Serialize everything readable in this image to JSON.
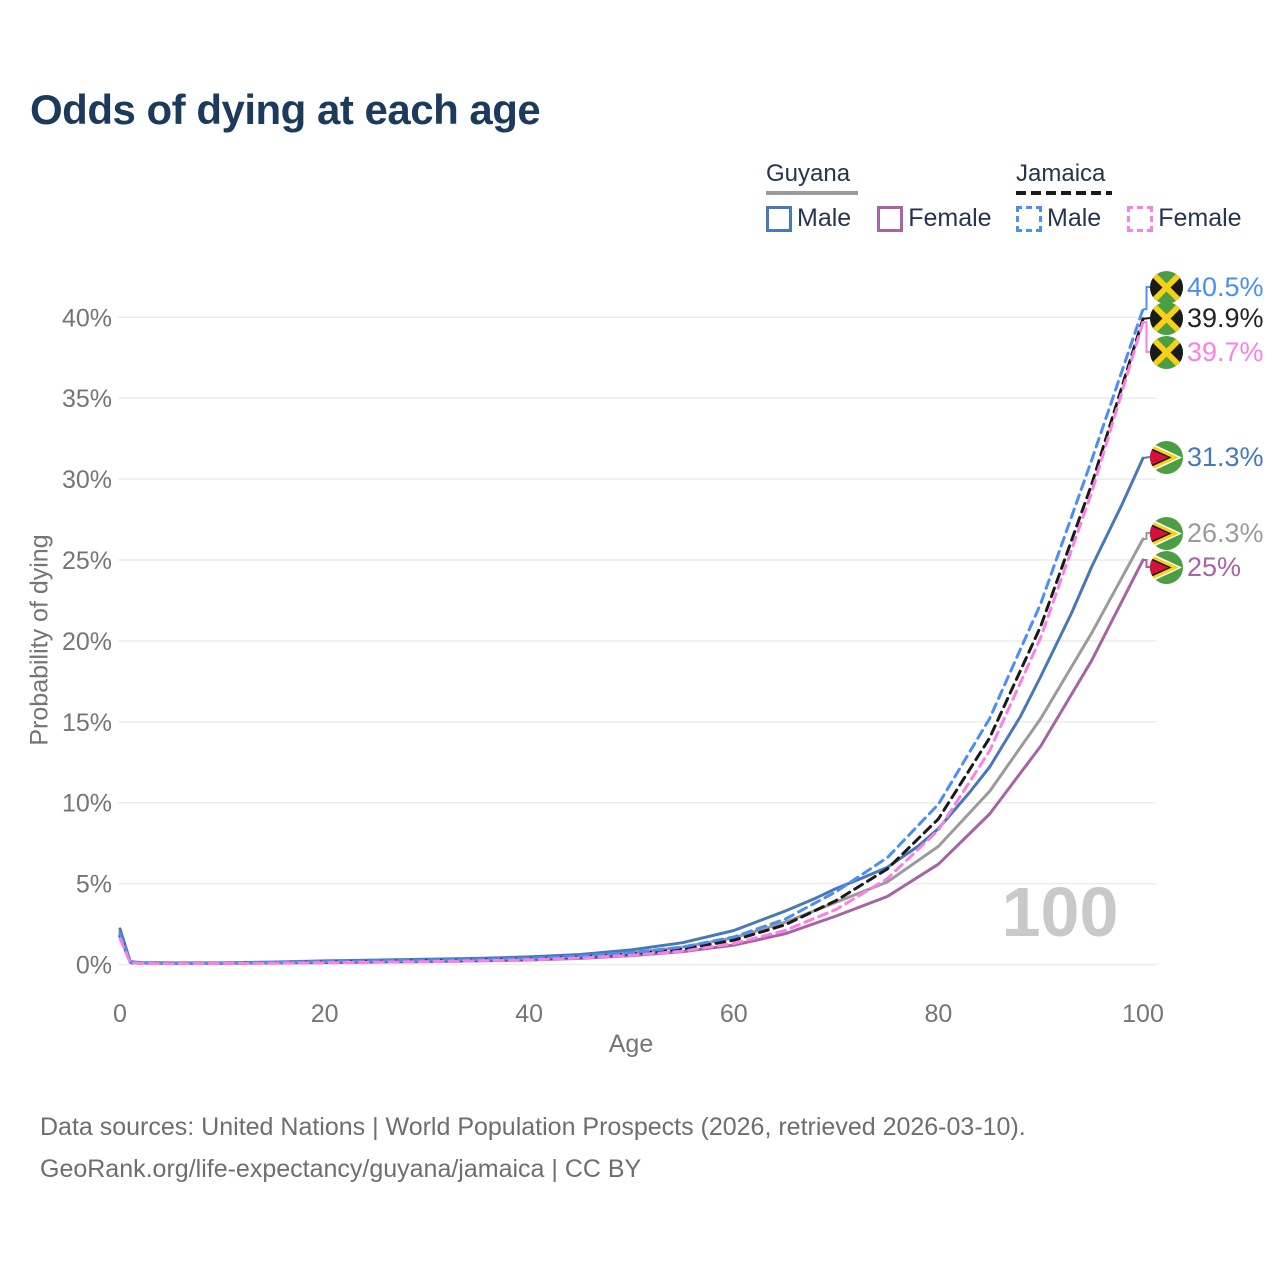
{
  "title": "Odds of dying at each age",
  "legend": {
    "groups": [
      {
        "country": "Guyana",
        "line_style": "solid",
        "underline_color": "#9b9b9b",
        "items": [
          {
            "label": "Male",
            "color": "#4878b8"
          },
          {
            "label": "Female",
            "color": "#a763a4"
          }
        ]
      },
      {
        "country": "Jamaica",
        "line_style": "dashed",
        "underline_color": "#1a1a1a",
        "items": [
          {
            "label": "Male",
            "color": "#4b8ef5"
          },
          {
            "label": "Female",
            "color": "#fb80e5"
          }
        ]
      }
    ]
  },
  "chart_data": {
    "type": "line",
    "title": "Odds of dying at each age",
    "xlabel": "Age",
    "ylabel": "Probability of dying",
    "xlim": [
      0,
      100
    ],
    "ylim_percent": [
      0,
      42
    ],
    "x_ticks": [
      0,
      20,
      40,
      60,
      80,
      100
    ],
    "y_ticks_percent": [
      0,
      5,
      10,
      15,
      20,
      25,
      30,
      35,
      40
    ],
    "y_tick_suffix": "%",
    "grid": true,
    "legend_position": "top-right",
    "age_indicator": "100",
    "series": [
      {
        "id": "guyana-both",
        "country": "Guyana",
        "name": "Guyana",
        "color": "#9b9b9b",
        "dashed": false,
        "flag": "guyana",
        "end_label": "26.3%",
        "end_value_percent": 26.3,
        "points": [
          [
            0,
            2.0
          ],
          [
            1,
            0.16
          ],
          [
            2,
            0.11
          ],
          [
            5,
            0.09
          ],
          [
            10,
            0.09
          ],
          [
            15,
            0.12
          ],
          [
            20,
            0.17
          ],
          [
            25,
            0.21
          ],
          [
            30,
            0.25
          ],
          [
            35,
            0.3
          ],
          [
            40,
            0.37
          ],
          [
            45,
            0.5
          ],
          [
            50,
            0.72
          ],
          [
            55,
            1.07
          ],
          [
            60,
            1.65
          ],
          [
            65,
            2.6
          ],
          [
            70,
            3.85
          ],
          [
            75,
            5.1
          ],
          [
            80,
            7.3
          ],
          [
            85,
            10.7
          ],
          [
            90,
            15.2
          ],
          [
            95,
            20.5
          ],
          [
            100,
            26.3
          ]
        ]
      },
      {
        "id": "guyana-male",
        "country": "Guyana",
        "name": "Guyana Male",
        "color": "#4878b8",
        "dashed": false,
        "flag": "guyana",
        "end_label": "31.3%",
        "end_value_percent": 31.3,
        "points": [
          [
            0,
            2.2
          ],
          [
            1,
            0.18
          ],
          [
            2,
            0.12
          ],
          [
            5,
            0.1
          ],
          [
            10,
            0.1
          ],
          [
            15,
            0.15
          ],
          [
            20,
            0.22
          ],
          [
            25,
            0.27
          ],
          [
            30,
            0.32
          ],
          [
            35,
            0.38
          ],
          [
            40,
            0.47
          ],
          [
            45,
            0.62
          ],
          [
            50,
            0.9
          ],
          [
            55,
            1.35
          ],
          [
            60,
            2.1
          ],
          [
            65,
            3.3
          ],
          [
            68,
            4.1
          ],
          [
            70,
            4.7
          ],
          [
            72,
            5.2
          ],
          [
            75,
            6.0
          ],
          [
            78,
            7.3
          ],
          [
            80,
            8.4
          ],
          [
            83,
            10.6
          ],
          [
            85,
            12.2
          ],
          [
            88,
            15.3
          ],
          [
            90,
            17.8
          ],
          [
            93,
            21.7
          ],
          [
            95,
            24.6
          ],
          [
            98,
            28.5
          ],
          [
            100,
            31.3
          ]
        ]
      },
      {
        "id": "guyana-female",
        "country": "Guyana",
        "name": "Guyana Female",
        "color": "#a763a4",
        "dashed": false,
        "flag": "guyana",
        "end_label": "25%",
        "end_value_percent": 25,
        "points": [
          [
            0,
            1.8
          ],
          [
            1,
            0.14
          ],
          [
            2,
            0.1
          ],
          [
            5,
            0.08
          ],
          [
            10,
            0.08
          ],
          [
            15,
            0.1
          ],
          [
            20,
            0.12
          ],
          [
            25,
            0.15
          ],
          [
            30,
            0.18
          ],
          [
            35,
            0.22
          ],
          [
            40,
            0.28
          ],
          [
            45,
            0.38
          ],
          [
            50,
            0.55
          ],
          [
            55,
            0.8
          ],
          [
            60,
            1.2
          ],
          [
            65,
            1.9
          ],
          [
            70,
            3.0
          ],
          [
            75,
            4.2
          ],
          [
            80,
            6.2
          ],
          [
            85,
            9.3
          ],
          [
            90,
            13.5
          ],
          [
            95,
            18.8
          ],
          [
            100,
            25.0
          ]
        ]
      },
      {
        "id": "jamaica-both",
        "country": "Jamaica",
        "name": "Jamaica",
        "color": "#1a1a1a",
        "dashed": true,
        "flag": "jamaica",
        "end_label": "39.9%",
        "end_value_percent": 39.9,
        "points": [
          [
            0,
            1.75
          ],
          [
            1,
            0.12
          ],
          [
            2,
            0.08
          ],
          [
            5,
            0.06
          ],
          [
            10,
            0.07
          ],
          [
            15,
            0.1
          ],
          [
            20,
            0.15
          ],
          [
            25,
            0.19
          ],
          [
            30,
            0.23
          ],
          [
            35,
            0.27
          ],
          [
            40,
            0.34
          ],
          [
            45,
            0.46
          ],
          [
            50,
            0.65
          ],
          [
            55,
            0.95
          ],
          [
            60,
            1.5
          ],
          [
            65,
            2.45
          ],
          [
            70,
            3.95
          ],
          [
            75,
            5.9
          ],
          [
            80,
            9.0
          ],
          [
            85,
            14.0
          ],
          [
            90,
            20.9
          ],
          [
            95,
            29.7
          ],
          [
            100,
            39.9
          ]
        ]
      },
      {
        "id": "jamaica-male",
        "country": "Jamaica",
        "name": "Jamaica Male",
        "color": "#4b8ef5",
        "dashed": true,
        "flag": "jamaica",
        "end_label": "40.5%",
        "end_value_percent": 40.5,
        "points": [
          [
            0,
            1.9
          ],
          [
            1,
            0.13
          ],
          [
            2,
            0.09
          ],
          [
            5,
            0.07
          ],
          [
            10,
            0.08
          ],
          [
            15,
            0.12
          ],
          [
            20,
            0.18
          ],
          [
            25,
            0.22
          ],
          [
            30,
            0.26
          ],
          [
            35,
            0.31
          ],
          [
            40,
            0.38
          ],
          [
            45,
            0.52
          ],
          [
            50,
            0.73
          ],
          [
            55,
            1.08
          ],
          [
            60,
            1.7
          ],
          [
            65,
            2.8
          ],
          [
            70,
            4.5
          ],
          [
            75,
            6.6
          ],
          [
            80,
            9.9
          ],
          [
            85,
            15.2
          ],
          [
            90,
            22.3
          ],
          [
            95,
            31.2
          ],
          [
            100,
            40.5
          ]
        ]
      },
      {
        "id": "jamaica-female",
        "country": "Jamaica",
        "name": "Jamaica Female",
        "color": "#fb80e5",
        "dashed": true,
        "flag": "jamaica",
        "end_label": "39.7%",
        "end_value_percent": 39.7,
        "points": [
          [
            0,
            1.6
          ],
          [
            1,
            0.11
          ],
          [
            2,
            0.07
          ],
          [
            5,
            0.05
          ],
          [
            10,
            0.06
          ],
          [
            15,
            0.08
          ],
          [
            20,
            0.11
          ],
          [
            25,
            0.14
          ],
          [
            30,
            0.18
          ],
          [
            35,
            0.23
          ],
          [
            40,
            0.29
          ],
          [
            45,
            0.4
          ],
          [
            50,
            0.57
          ],
          [
            55,
            0.83
          ],
          [
            60,
            1.3
          ],
          [
            65,
            2.1
          ],
          [
            70,
            3.4
          ],
          [
            75,
            5.3
          ],
          [
            80,
            8.3
          ],
          [
            85,
            13.2
          ],
          [
            90,
            20.2
          ],
          [
            95,
            29.2
          ],
          [
            100,
            39.7
          ]
        ]
      }
    ]
  },
  "end_labels_top_to_bottom": [
    "40.5%",
    "39.9%",
    "39.7%",
    "31.3%",
    "26.3%",
    "25%"
  ],
  "footer": {
    "line1": "Data sources: United Nations | World Population Prospects (2026, retrieved 2026-03-10).",
    "line2": "GeoRank.org/life-expectancy/guyana/jamaica | CC BY"
  },
  "colors": {
    "title": "#1c3a5c",
    "axis_text": "#757575",
    "gridline": "#ececec",
    "watermark": "#c9c9c9",
    "footer_text": "#6e6e6e"
  }
}
